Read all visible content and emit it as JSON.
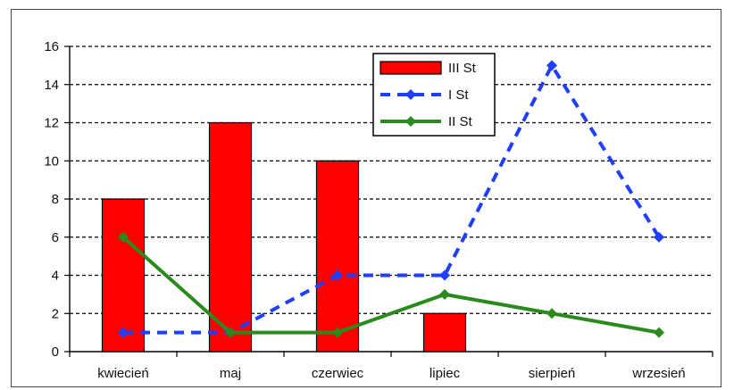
{
  "chart_data": {
    "type": "bar",
    "categories": [
      "kwiecień",
      "maj",
      "czerwiec",
      "lipiec",
      "sierpień",
      "wrzesień"
    ],
    "series": [
      {
        "name": "III St",
        "type": "bar",
        "color": "#ff0000",
        "values": [
          8,
          12,
          10,
          2,
          0,
          0
        ]
      },
      {
        "name": "I St",
        "type": "line",
        "style": "dashed",
        "color": "#1f3fff",
        "values": [
          1,
          1,
          4,
          4,
          15,
          6
        ]
      },
      {
        "name": "II St",
        "type": "line",
        "style": "solid",
        "color": "#2a8a1e",
        "values": [
          6,
          1,
          1,
          3,
          2,
          1
        ]
      }
    ],
    "yticks": [
      "0",
      "2",
      "4",
      "6",
      "8",
      "10",
      "12",
      "14",
      "16"
    ],
    "ylim": [
      0,
      16
    ],
    "grid": "horizontal dashed",
    "legend_position": "top-center"
  }
}
